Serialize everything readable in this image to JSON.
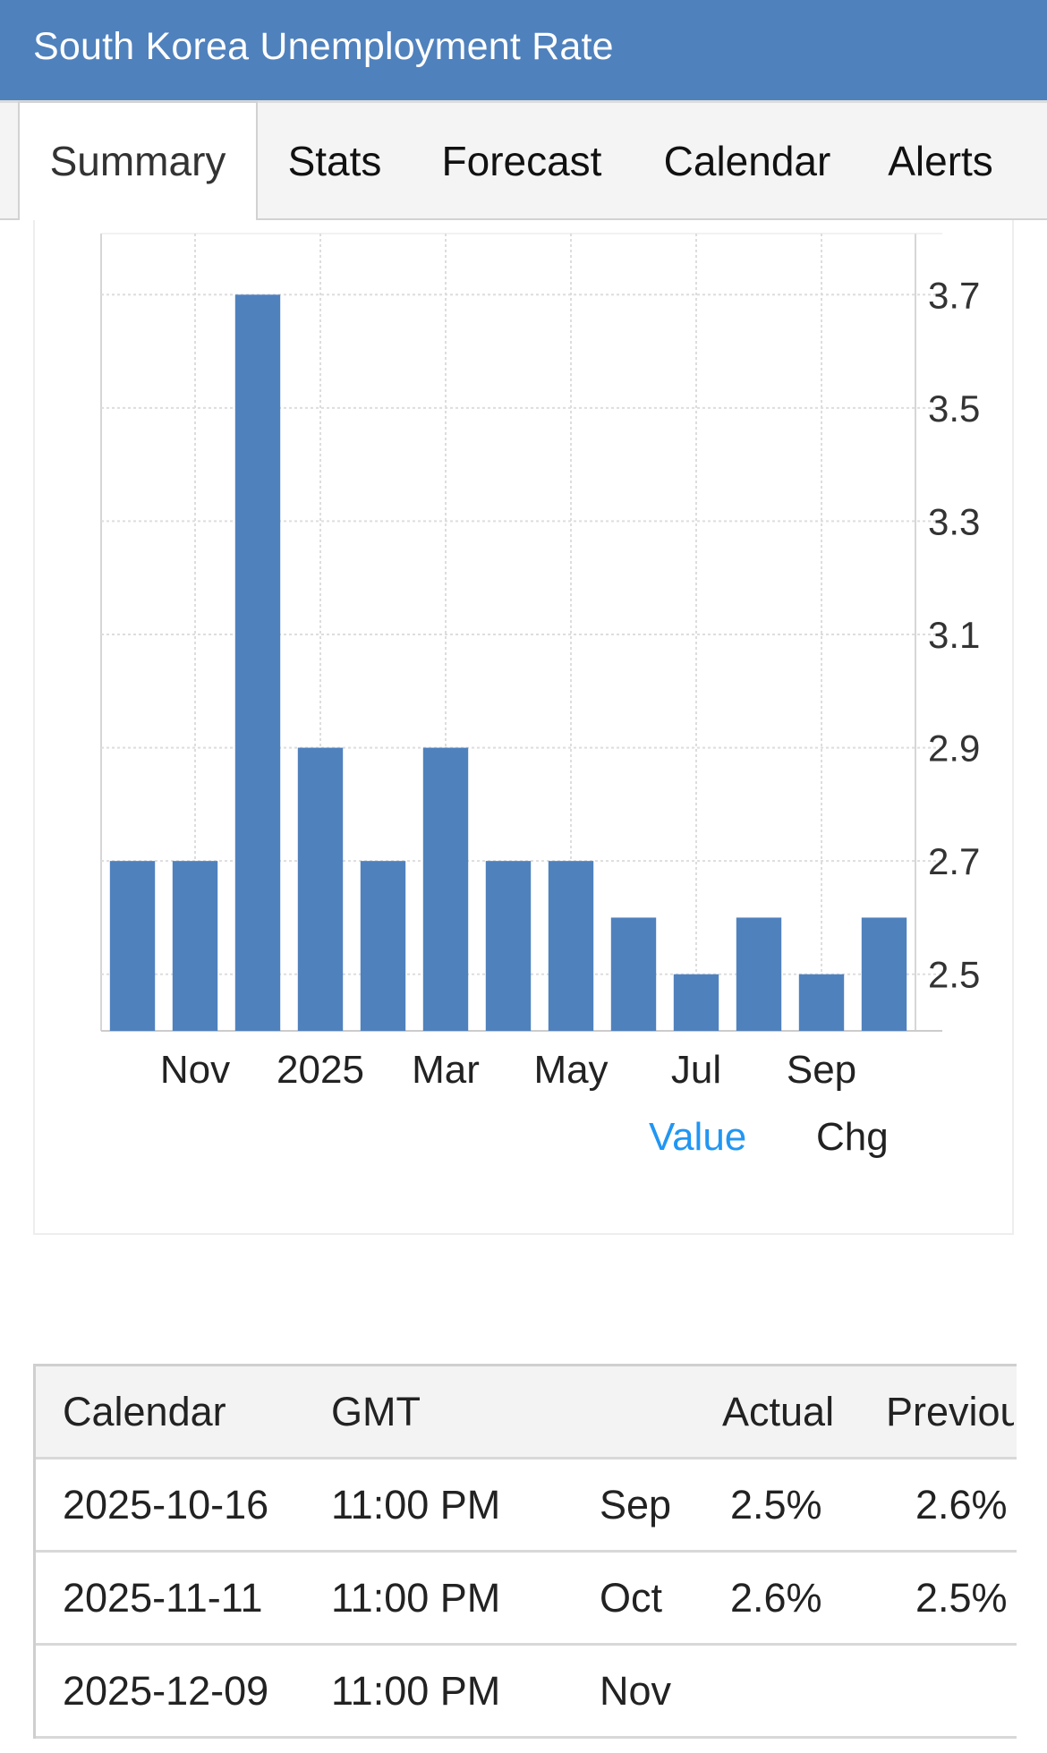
{
  "header": {
    "title": "South Korea Unemployment Rate",
    "bg_color": "#4f81bd"
  },
  "tabs": [
    {
      "label": "Summary",
      "active": true
    },
    {
      "label": "Stats",
      "active": false
    },
    {
      "label": "Forecast",
      "active": false
    },
    {
      "label": "Calendar",
      "active": false
    },
    {
      "label": "Alerts",
      "active": false
    }
  ],
  "chart_data": {
    "type": "bar",
    "bar_color": "#4f81bd",
    "y_axis_position": "right",
    "grid": true,
    "ylim": [
      2.4,
      3.8
    ],
    "yticks": [
      "3.7",
      "3.5",
      "3.3",
      "3.1",
      "2.9",
      "2.7",
      "2.5"
    ],
    "xtick_labels": [
      "Nov",
      "2025",
      "Mar",
      "May",
      "Jul",
      "Sep"
    ],
    "series": [
      {
        "values": [
          2.7,
          2.7,
          3.7,
          2.9,
          2.7,
          2.9,
          2.7,
          2.7,
          2.6,
          2.5,
          2.6,
          2.5,
          2.6
        ]
      }
    ]
  },
  "legend": {
    "value_label": "Value",
    "value_color": "#2196f3",
    "chg_label": "Chg"
  },
  "calendar_table": {
    "headers": {
      "calendar": "Calendar",
      "gmt": "GMT",
      "actual": "Actual",
      "previous": "Previous"
    },
    "rows": [
      {
        "date": "2025-10-16",
        "time": "11:00 PM",
        "reference": "Sep",
        "actual": "2.5%",
        "previous": "2.6%"
      },
      {
        "date": "2025-11-11",
        "time": "11:00 PM",
        "reference": "Oct",
        "actual": "2.6%",
        "previous": "2.5%"
      },
      {
        "date": "2025-12-09",
        "time": "11:00 PM",
        "reference": "Nov",
        "actual": "",
        "previous": ""
      }
    ]
  }
}
